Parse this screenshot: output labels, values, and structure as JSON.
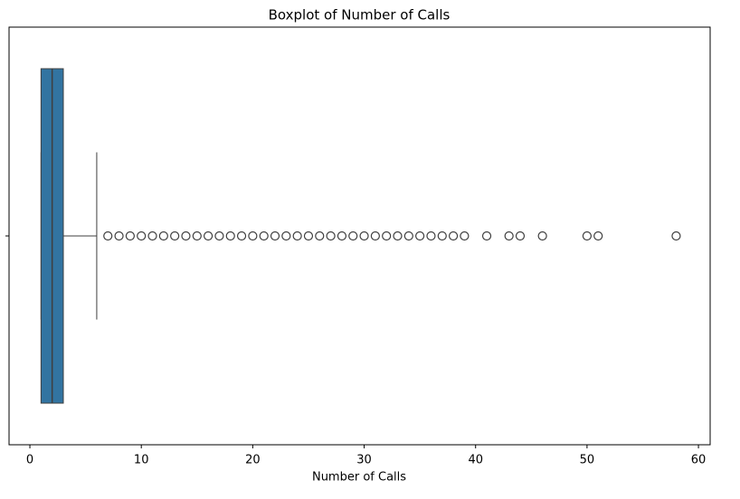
{
  "chart_data": {
    "type": "box",
    "title": "Boxplot of Number of Calls",
    "x_label": "Number of Calls",
    "categories": [
      null
    ],
    "whisker_low": 1,
    "q1": 1,
    "median": 2,
    "q3": 3,
    "whisker_high": 6,
    "outliers": [
      7,
      8,
      9,
      10,
      11,
      12,
      13,
      14,
      15,
      16,
      17,
      18,
      19,
      20,
      21,
      22,
      23,
      24,
      25,
      26,
      27,
      28,
      29,
      30,
      31,
      32,
      33,
      34,
      35,
      36,
      37,
      38,
      39,
      41,
      43,
      44,
      46,
      50,
      51,
      58
    ],
    "color": "#3274a1",
    "line_color": "#3f3f3f",
    "xlim": [
      -1.87,
      61.05
    ],
    "xticks": [
      0,
      10,
      20,
      30,
      40,
      50,
      60
    ]
  }
}
